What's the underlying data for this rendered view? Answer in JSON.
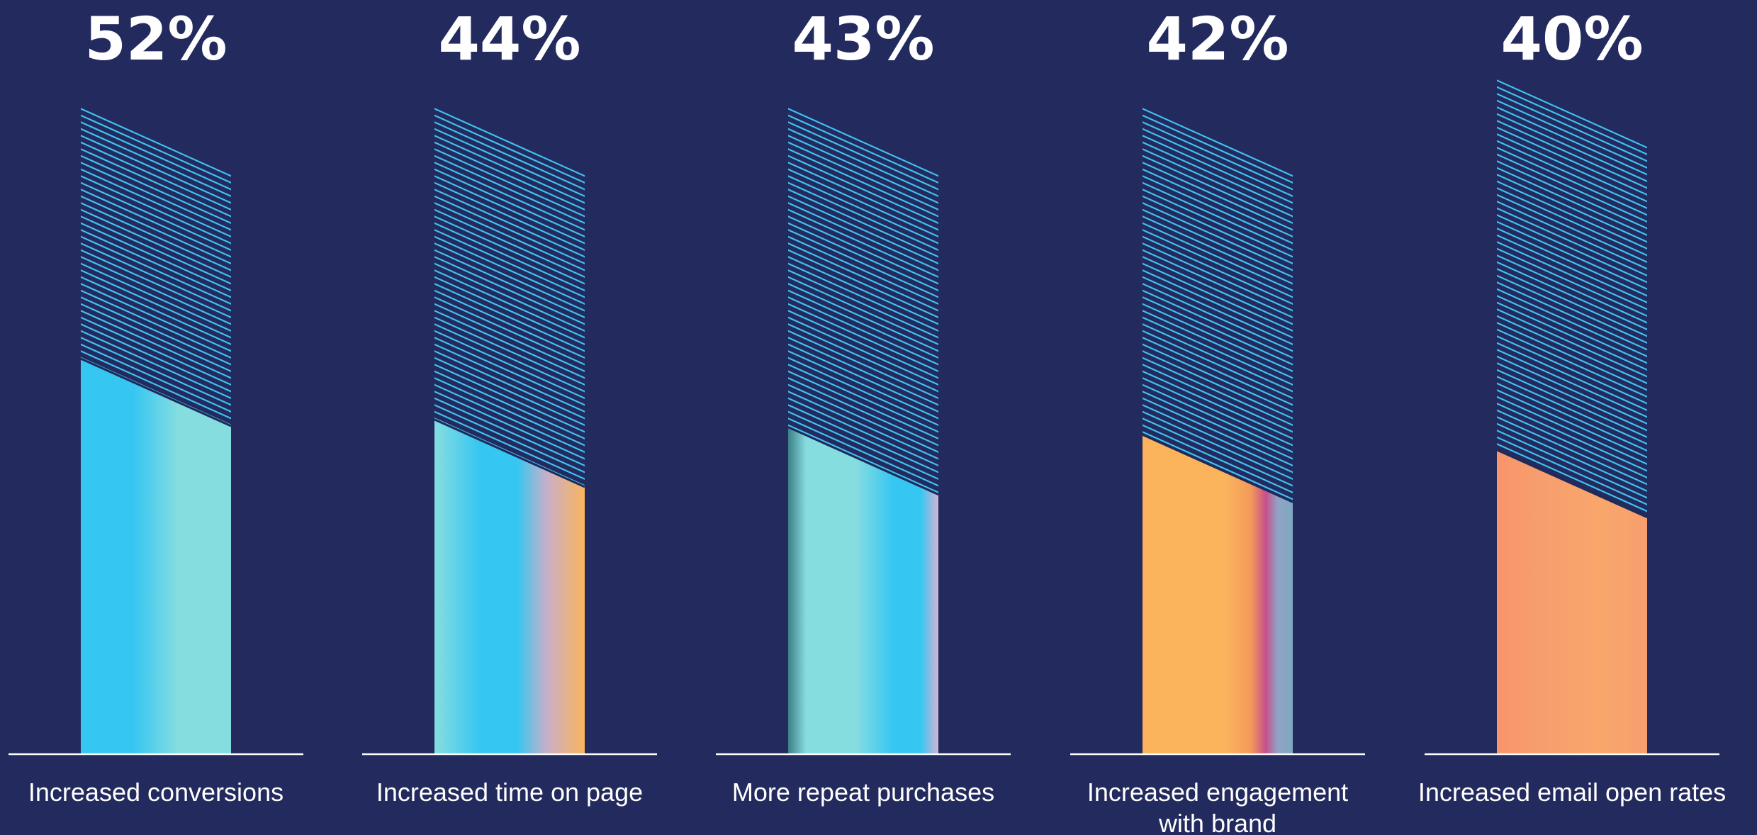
{
  "chart_data": {
    "type": "bar",
    "categories": [
      [
        "Increased conversions"
      ],
      [
        "Increased time on page"
      ],
      [
        "More repeat purchases"
      ],
      [
        "Increased engagement",
        "with brand"
      ],
      [
        "Increased email open rates"
      ]
    ],
    "values": [
      52,
      44,
      43,
      42,
      40
    ],
    "value_labels": [
      "52%",
      "44%",
      "43%",
      "42%",
      "40%"
    ],
    "ylim": [
      0,
      100
    ],
    "grid": false,
    "colors": {
      "background": "#232A5E",
      "hatch": "#3FC2F0",
      "baseline": "#FFFFFF",
      "text": "#FFFFFF",
      "cyan": "#36C6F2",
      "aqua": "#86DDE0",
      "orange": "#FBB45C",
      "peach": "#F79E6E",
      "pink": "#C8508C"
    }
  }
}
